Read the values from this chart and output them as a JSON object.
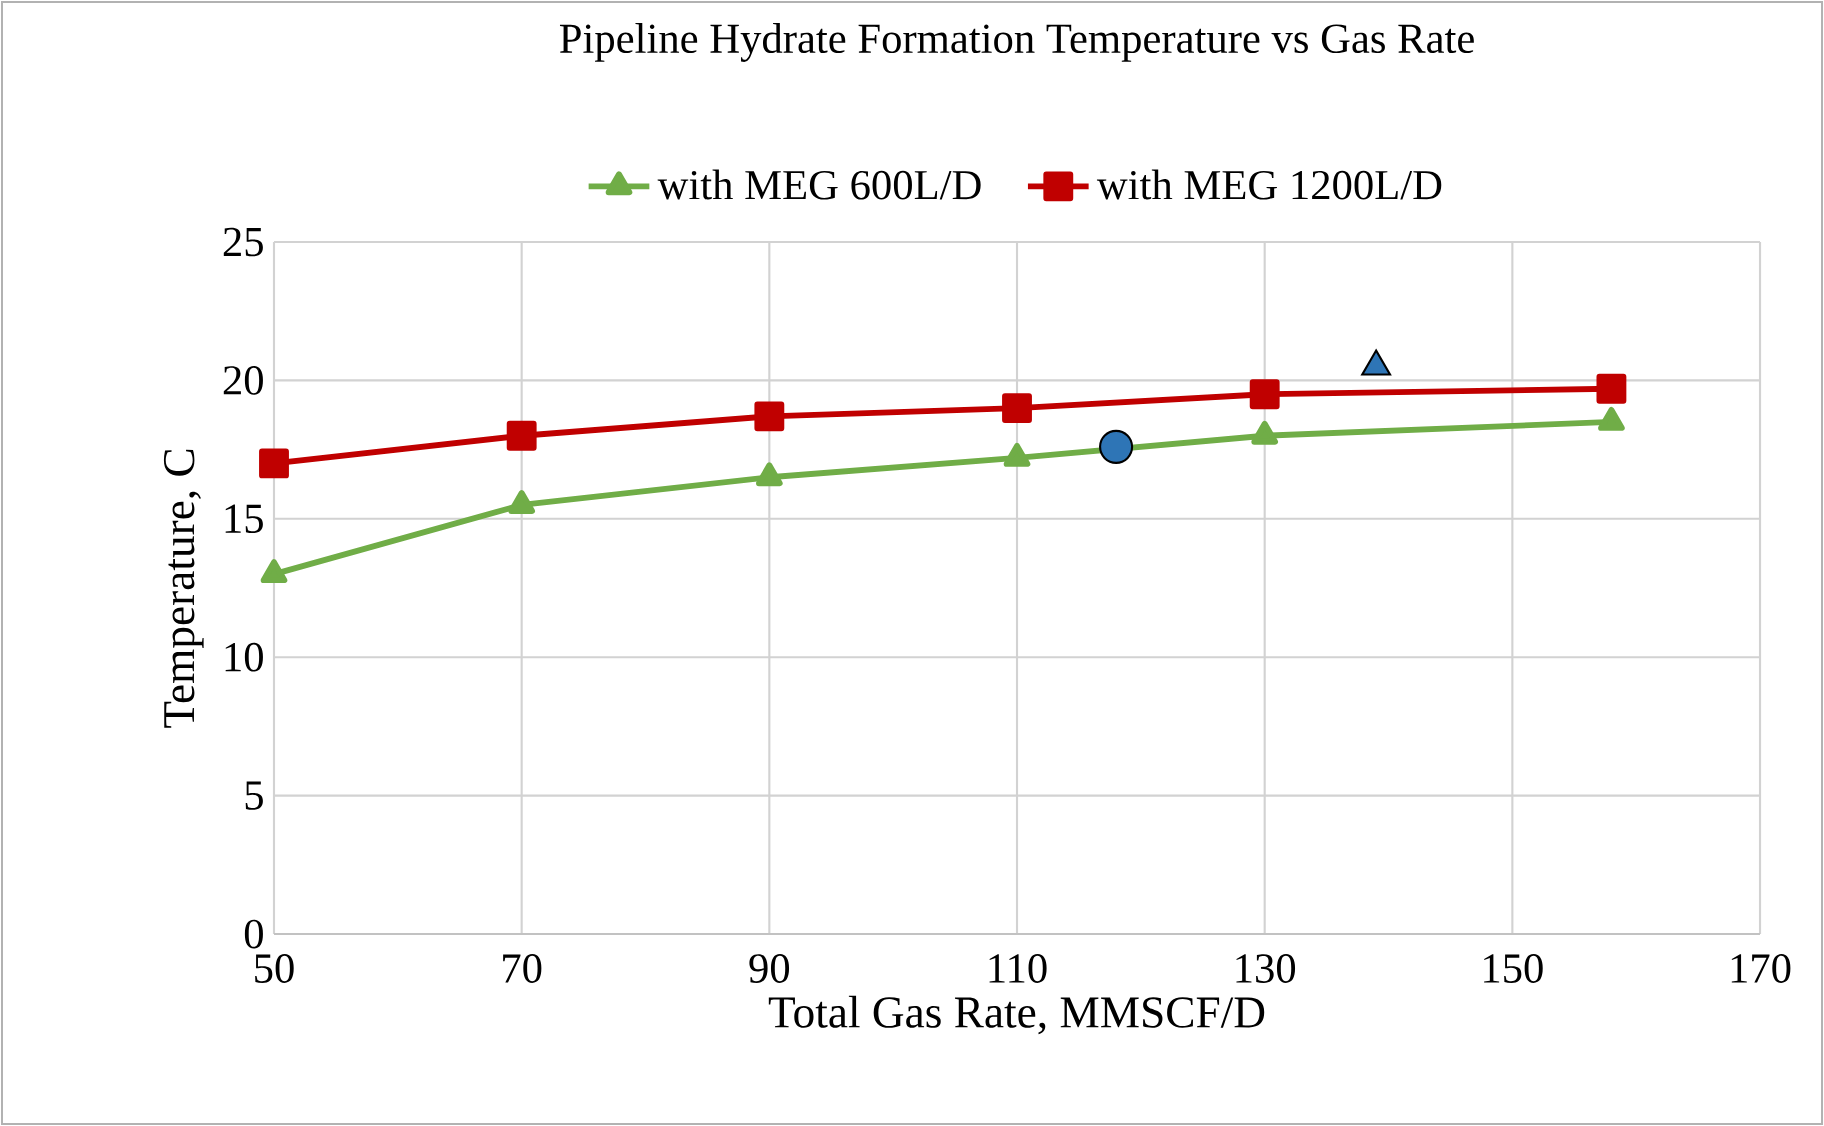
{
  "chart_data": {
    "type": "line",
    "title": "Pipeline Hydrate Formation Temperature vs Gas Rate",
    "xlabel": "Total Gas Rate, MMSCF/D",
    "ylabel": "Temperature, C",
    "xlim": [
      50,
      170
    ],
    "xticks": [
      50,
      70,
      90,
      110,
      130,
      150,
      170
    ],
    "ylim": [
      0,
      25
    ],
    "yticks": [
      0,
      5,
      10,
      15,
      20,
      25
    ],
    "grid": true,
    "legend": "top",
    "series": [
      {
        "name": "with MEG 600L/D",
        "color": "#70ad47",
        "marker": "triangle",
        "x": [
          50,
          70,
          90,
          110,
          130,
          158
        ],
        "values": [
          13,
          15.5,
          16.5,
          17.2,
          18,
          18.5
        ]
      },
      {
        "name": "with MEG 1200L/D",
        "color": "#c00000",
        "marker": "square",
        "x": [
          50,
          70,
          90,
          110,
          130,
          158
        ],
        "values": [
          17,
          18,
          18.7,
          19,
          19.5,
          19.7
        ]
      },
      {
        "type": "scatter",
        "color": "#2e75b6",
        "marker": "circle",
        "x": [
          118
        ],
        "values": [
          17.6
        ]
      },
      {
        "type": "scatter",
        "color": "#2e75b6",
        "marker": "triangle",
        "x": [
          139
        ],
        "values": [
          20.5
        ]
      }
    ]
  }
}
